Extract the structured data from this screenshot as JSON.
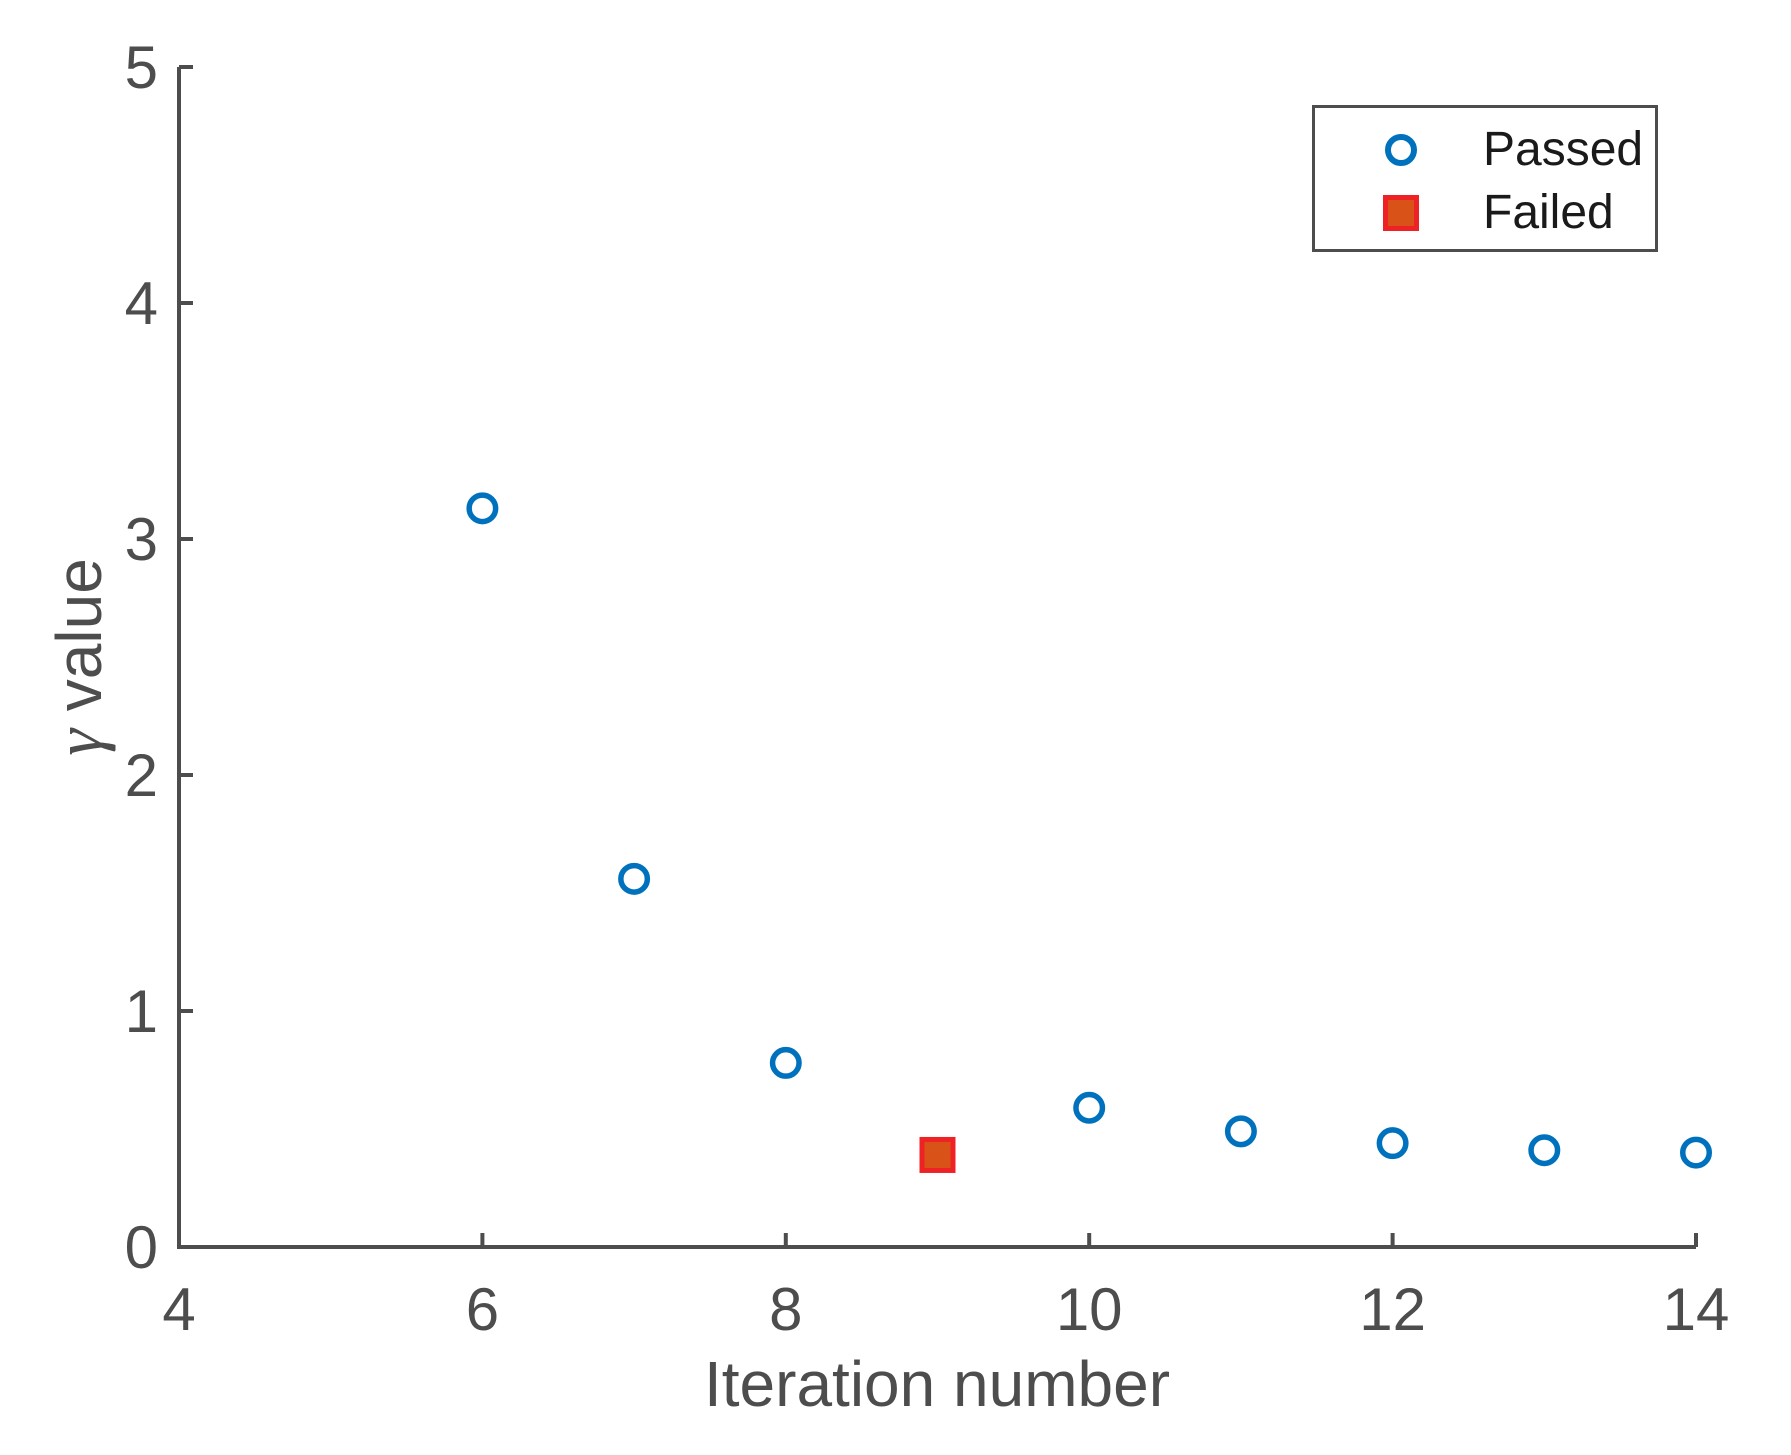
{
  "figure": {
    "background": "#ffffff",
    "axis_color": "#4d4d4d",
    "tick_label_color": "#4d4d4d",
    "axis_label_color": "#4d4d4d",
    "legend_text_color": "#1a1a1a"
  },
  "chart_data": {
    "type": "scatter",
    "title": "",
    "xlabel": "Iteration number",
    "ylabel": "γ value",
    "ylabel_symbol": "γ",
    "ylabel_rest": " value",
    "xlim": [
      4,
      14
    ],
    "ylim": [
      0,
      5
    ],
    "xticks": [
      "4",
      "6",
      "8",
      "10",
      "12",
      "14"
    ],
    "yticks": [
      "0",
      "1",
      "2",
      "3",
      "4",
      "5"
    ],
    "grid": false,
    "legend": {
      "position": "top-right",
      "entries": [
        "Passed",
        "Failed"
      ]
    },
    "series": [
      {
        "name": "Passed",
        "marker": "circle",
        "marker_fill": "none",
        "marker_edge": "#0072BD",
        "points": [
          [
            6,
            3.13
          ],
          [
            7,
            1.56
          ],
          [
            8,
            0.78
          ],
          [
            10,
            0.59
          ],
          [
            11,
            0.49
          ],
          [
            12,
            0.44
          ],
          [
            13,
            0.41
          ],
          [
            14,
            0.4
          ]
        ]
      },
      {
        "name": "Failed",
        "marker": "square",
        "marker_fill": "#D95319",
        "marker_edge": "#EE2224",
        "points": [
          [
            9,
            0.39
          ]
        ]
      }
    ]
  }
}
